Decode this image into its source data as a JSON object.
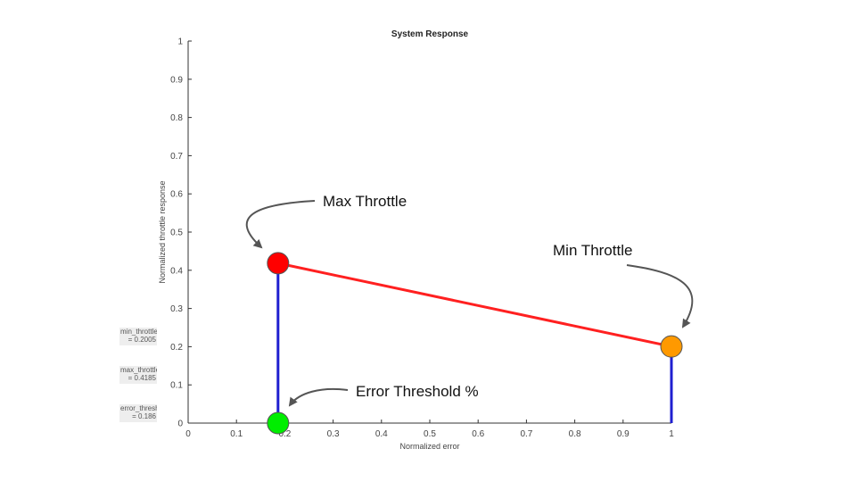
{
  "chart_data": {
    "type": "line",
    "title": "System Response",
    "xlabel": "Normalized error",
    "ylabel": "Normalized throttle response",
    "xlim": [
      0,
      1
    ],
    "ylim": [
      0,
      1
    ],
    "xticks": [
      "0",
      "0.1",
      "0.2",
      "0.3",
      "0.4",
      "0.5",
      "0.6",
      "0.7",
      "0.8",
      "0.9",
      "1"
    ],
    "yticks": [
      "0",
      "0.1",
      "0.2",
      "0.3",
      "0.4",
      "0.5",
      "0.6",
      "0.7",
      "0.8",
      "0.9",
      "1"
    ],
    "grid": false,
    "series": [
      {
        "color": "#ff2020",
        "points": [
          [
            0.186,
            0.4185
          ],
          [
            1.0,
            0.2005
          ]
        ]
      },
      {
        "color": "#1f1fd0",
        "points": [
          [
            0.186,
            0.0
          ],
          [
            0.186,
            0.4185
          ]
        ]
      },
      {
        "color": "#1f1fd0",
        "points": [
          [
            1.0,
            0.0
          ],
          [
            1.0,
            0.2005
          ]
        ]
      }
    ],
    "markers": [
      {
        "name": "max-throttle-marker",
        "x": 0.186,
        "y": 0.4185,
        "color": "#ff0000"
      },
      {
        "name": "min-throttle-marker",
        "x": 1.0,
        "y": 0.2005,
        "color": "#ff9900"
      },
      {
        "name": "error-threshold-marker",
        "x": 0.186,
        "y": 0.0,
        "color": "#00ee00"
      }
    ],
    "annotations": [
      "Max Throttle",
      "Min Throttle",
      "Error Threshold %"
    ]
  },
  "params": [
    {
      "name": "min_throttle",
      "value": "= 0.2005"
    },
    {
      "name": "max_throttle",
      "value": "= 0.4185"
    },
    {
      "name": "error_threshold",
      "value": "= 0.186"
    }
  ]
}
